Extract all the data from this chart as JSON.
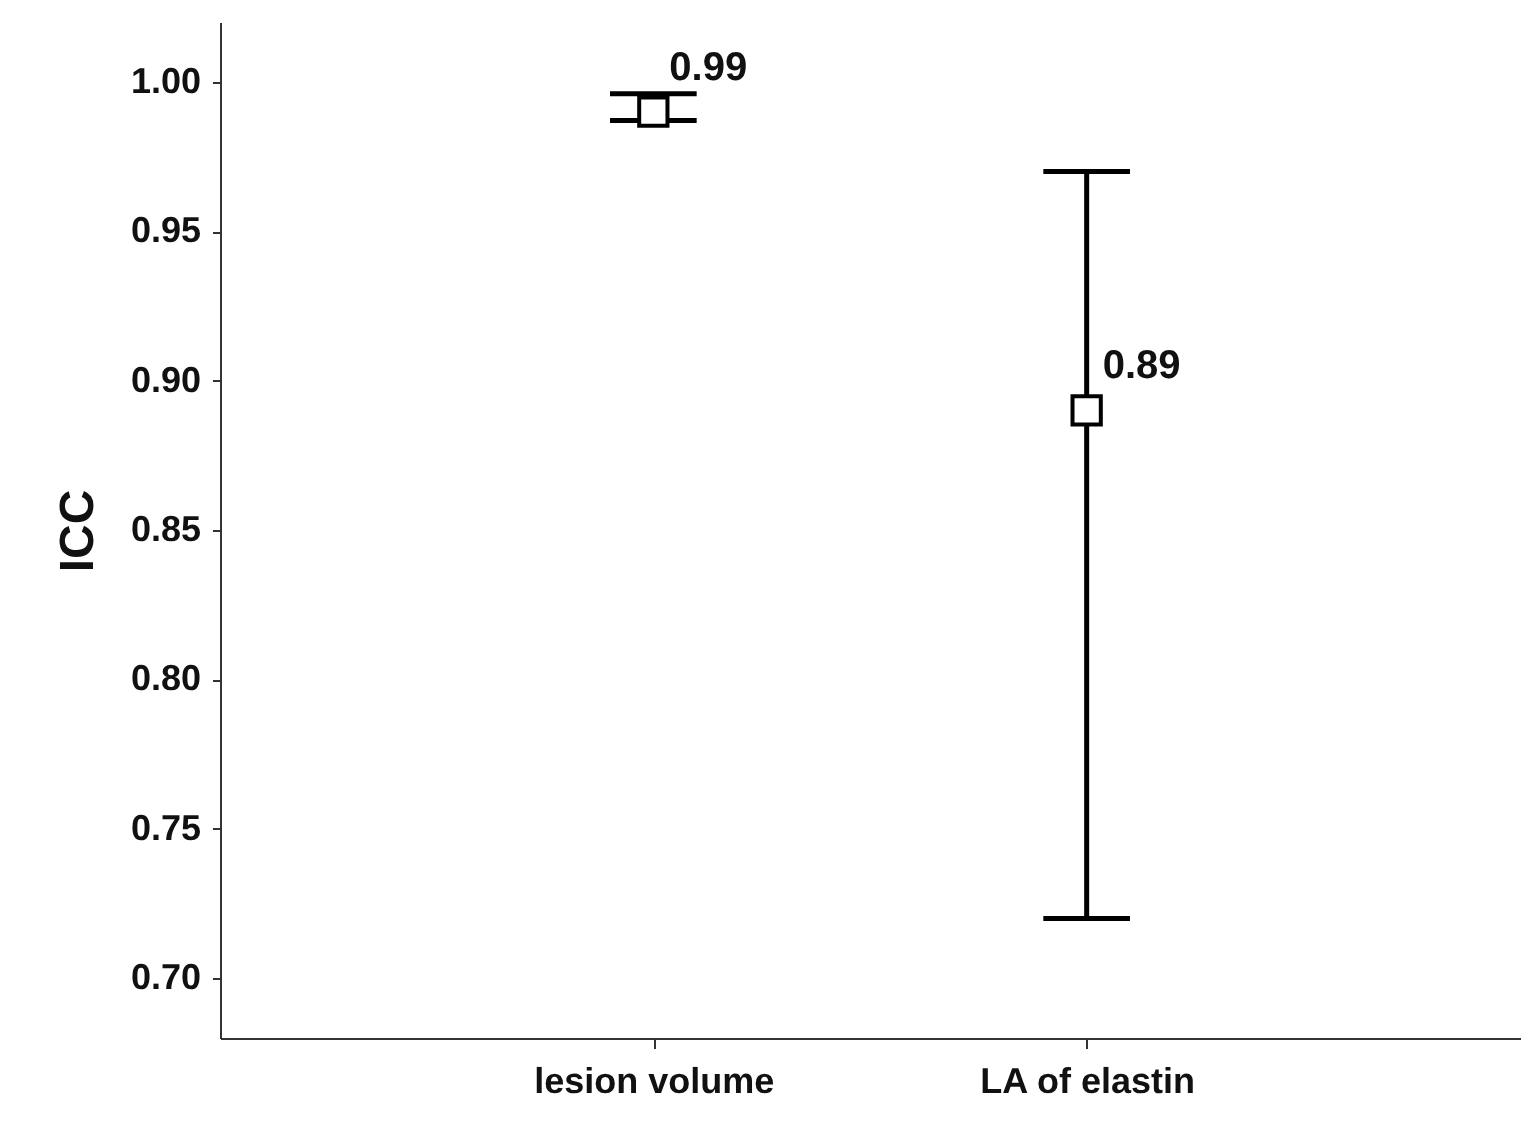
{
  "chart_data": {
    "type": "scatter",
    "ylabel": "ICC",
    "categories": [
      "lesion volume",
      "LA of elastin"
    ],
    "values": [
      0.99,
      0.89
    ],
    "errors": [
      [
        0.987,
        0.996
      ],
      [
        0.72,
        0.97
      ]
    ],
    "color": "#000000",
    "marker": "square",
    "data_labels": true,
    "grid": false,
    "ylim": [
      0.68,
      1.02
    ],
    "yticks": [
      {
        "value": 0.7,
        "label": "0.70"
      },
      {
        "value": 0.75,
        "label": "0.75"
      },
      {
        "value": 0.8,
        "label": "0.80"
      },
      {
        "value": 0.85,
        "label": "0.85"
      },
      {
        "value": 0.9,
        "label": "0.90"
      },
      {
        "value": 0.95,
        "label": "0.95"
      },
      {
        "value": 1.0,
        "label": "1.00"
      }
    ]
  }
}
